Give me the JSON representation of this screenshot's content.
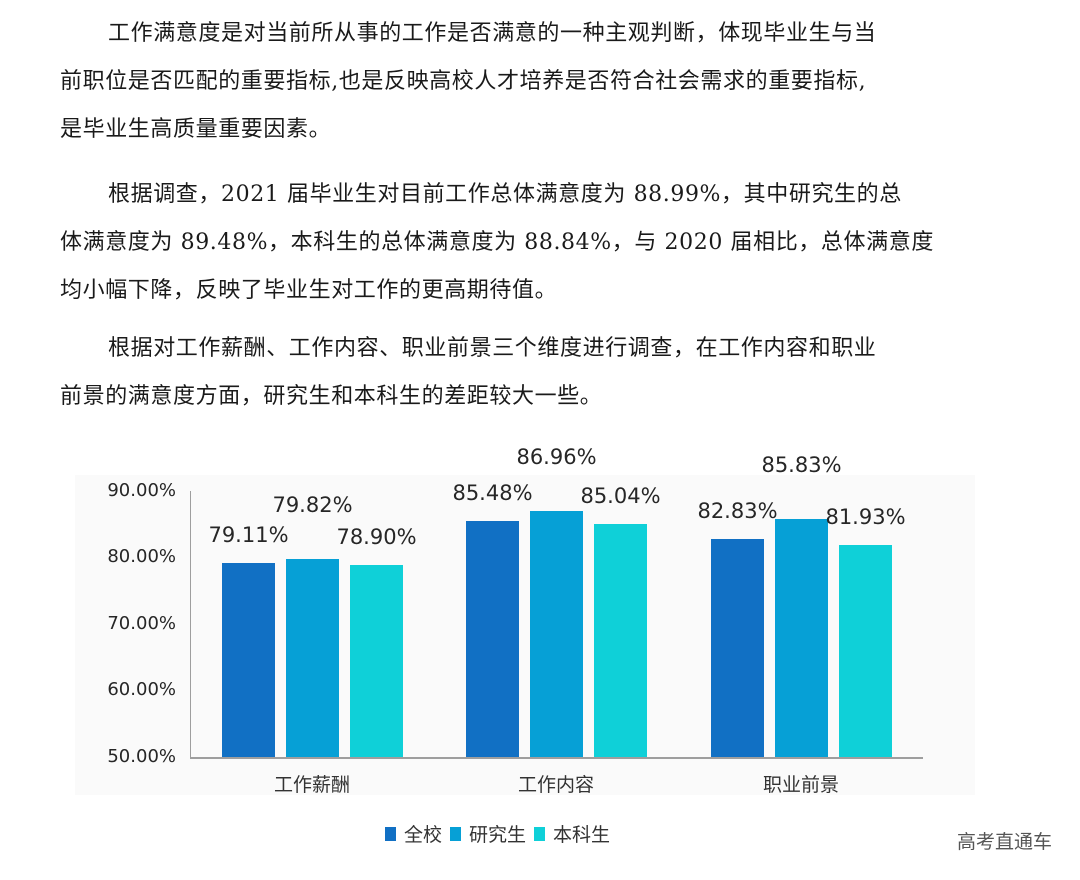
{
  "paragraphs": [
    {
      "lines": [
        "工作满意度是对当前所从事的工作是否满意的一种主观判断，体现毕业生与当",
        "前职位是否匹配的重要指标,也是反映高校人才培养是否符合社会需求的重要指标,",
        "是毕业生高质量重要因素。"
      ]
    },
    {
      "lines": [
        "根据调查，2021 届毕业生对目前工作总体满意度为 88.99%，其中研究生的总",
        "体满意度为 89.48%，本科生的总体满意度为 88.84%，与 2020 届相比，总体满意度",
        "均小幅下降，反映了毕业生对工作的更高期待值。"
      ]
    },
    {
      "lines": [
        "根据对工作薪酬、工作内容、职业前景三个维度进行调查，在工作内容和职业",
        "前景的满意度方面，研究生和本科生的差距较大一些。"
      ]
    }
  ],
  "chart_data": {
    "type": "bar",
    "title": "",
    "xlabel": "",
    "ylabel": "",
    "categories": [
      "工作薪酬",
      "工作内容",
      "职业前景"
    ],
    "series": [
      {
        "name": "全校",
        "color": "#1170c4",
        "values": [
          79.11,
          85.48,
          82.83
        ],
        "labels": [
          "79.11%",
          "85.48%",
          "82.83%"
        ]
      },
      {
        "name": "研究生",
        "color": "#06a0d6",
        "values": [
          79.82,
          86.96,
          85.83
        ],
        "labels": [
          "79.82%",
          "86.96%",
          "85.83%"
        ]
      },
      {
        "name": "本科生",
        "color": "#0fd0d8",
        "values": [
          78.9,
          85.04,
          81.93
        ],
        "labels": [
          "78.90%",
          "85.04%",
          "81.93%"
        ]
      }
    ],
    "ylim": [
      50,
      90
    ],
    "yticks": [
      "90.00%",
      "80.00%",
      "70.00%",
      "60.00%",
      "50.00%"
    ],
    "grid": false,
    "legend_position": "bottom"
  },
  "watermark": "高考直通车"
}
